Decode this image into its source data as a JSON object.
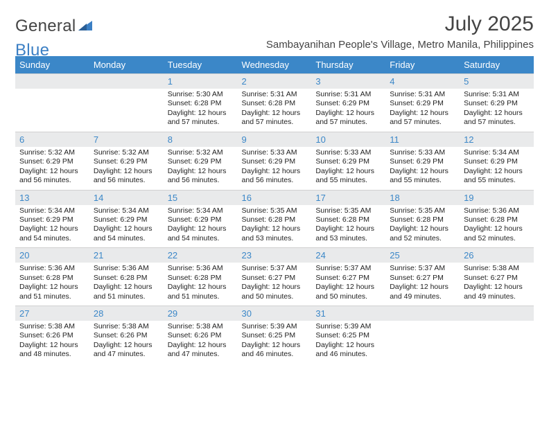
{
  "logo": {
    "word1": "General",
    "word2": "Blue"
  },
  "title": "July 2025",
  "location": "Sambayanihan People's Village, Metro Manila, Philippines",
  "colors": {
    "header_bg": "#3b87c8",
    "header_text": "#ffffff",
    "daynum_bg": "#e9eaeb",
    "daynum_text": "#3b87c8",
    "body_text": "#222222",
    "title_text": "#444444",
    "logo_gray": "#444444",
    "logo_blue": "#3b7fc4"
  },
  "day_headers": [
    "Sunday",
    "Monday",
    "Tuesday",
    "Wednesday",
    "Thursday",
    "Friday",
    "Saturday"
  ],
  "weeks": [
    [
      {
        "empty": true
      },
      {
        "empty": true
      },
      {
        "n": "1",
        "sr": "5:30 AM",
        "ss": "6:28 PM",
        "dl": "12 hours and 57 minutes."
      },
      {
        "n": "2",
        "sr": "5:31 AM",
        "ss": "6:28 PM",
        "dl": "12 hours and 57 minutes."
      },
      {
        "n": "3",
        "sr": "5:31 AM",
        "ss": "6:29 PM",
        "dl": "12 hours and 57 minutes."
      },
      {
        "n": "4",
        "sr": "5:31 AM",
        "ss": "6:29 PM",
        "dl": "12 hours and 57 minutes."
      },
      {
        "n": "5",
        "sr": "5:31 AM",
        "ss": "6:29 PM",
        "dl": "12 hours and 57 minutes."
      }
    ],
    [
      {
        "n": "6",
        "sr": "5:32 AM",
        "ss": "6:29 PM",
        "dl": "12 hours and 56 minutes."
      },
      {
        "n": "7",
        "sr": "5:32 AM",
        "ss": "6:29 PM",
        "dl": "12 hours and 56 minutes."
      },
      {
        "n": "8",
        "sr": "5:32 AM",
        "ss": "6:29 PM",
        "dl": "12 hours and 56 minutes."
      },
      {
        "n": "9",
        "sr": "5:33 AM",
        "ss": "6:29 PM",
        "dl": "12 hours and 56 minutes."
      },
      {
        "n": "10",
        "sr": "5:33 AM",
        "ss": "6:29 PM",
        "dl": "12 hours and 55 minutes."
      },
      {
        "n": "11",
        "sr": "5:33 AM",
        "ss": "6:29 PM",
        "dl": "12 hours and 55 minutes."
      },
      {
        "n": "12",
        "sr": "5:34 AM",
        "ss": "6:29 PM",
        "dl": "12 hours and 55 minutes."
      }
    ],
    [
      {
        "n": "13",
        "sr": "5:34 AM",
        "ss": "6:29 PM",
        "dl": "12 hours and 54 minutes."
      },
      {
        "n": "14",
        "sr": "5:34 AM",
        "ss": "6:29 PM",
        "dl": "12 hours and 54 minutes."
      },
      {
        "n": "15",
        "sr": "5:34 AM",
        "ss": "6:29 PM",
        "dl": "12 hours and 54 minutes."
      },
      {
        "n": "16",
        "sr": "5:35 AM",
        "ss": "6:28 PM",
        "dl": "12 hours and 53 minutes."
      },
      {
        "n": "17",
        "sr": "5:35 AM",
        "ss": "6:28 PM",
        "dl": "12 hours and 53 minutes."
      },
      {
        "n": "18",
        "sr": "5:35 AM",
        "ss": "6:28 PM",
        "dl": "12 hours and 52 minutes."
      },
      {
        "n": "19",
        "sr": "5:36 AM",
        "ss": "6:28 PM",
        "dl": "12 hours and 52 minutes."
      }
    ],
    [
      {
        "n": "20",
        "sr": "5:36 AM",
        "ss": "6:28 PM",
        "dl": "12 hours and 51 minutes."
      },
      {
        "n": "21",
        "sr": "5:36 AM",
        "ss": "6:28 PM",
        "dl": "12 hours and 51 minutes."
      },
      {
        "n": "22",
        "sr": "5:36 AM",
        "ss": "6:28 PM",
        "dl": "12 hours and 51 minutes."
      },
      {
        "n": "23",
        "sr": "5:37 AM",
        "ss": "6:27 PM",
        "dl": "12 hours and 50 minutes."
      },
      {
        "n": "24",
        "sr": "5:37 AM",
        "ss": "6:27 PM",
        "dl": "12 hours and 50 minutes."
      },
      {
        "n": "25",
        "sr": "5:37 AM",
        "ss": "6:27 PM",
        "dl": "12 hours and 49 minutes."
      },
      {
        "n": "26",
        "sr": "5:38 AM",
        "ss": "6:27 PM",
        "dl": "12 hours and 49 minutes."
      }
    ],
    [
      {
        "n": "27",
        "sr": "5:38 AM",
        "ss": "6:26 PM",
        "dl": "12 hours and 48 minutes."
      },
      {
        "n": "28",
        "sr": "5:38 AM",
        "ss": "6:26 PM",
        "dl": "12 hours and 47 minutes."
      },
      {
        "n": "29",
        "sr": "5:38 AM",
        "ss": "6:26 PM",
        "dl": "12 hours and 47 minutes."
      },
      {
        "n": "30",
        "sr": "5:39 AM",
        "ss": "6:25 PM",
        "dl": "12 hours and 46 minutes."
      },
      {
        "n": "31",
        "sr": "5:39 AM",
        "ss": "6:25 PM",
        "dl": "12 hours and 46 minutes."
      },
      {
        "empty": true
      },
      {
        "empty": true
      }
    ]
  ],
  "labels": {
    "sunrise": "Sunrise:",
    "sunset": "Sunset:",
    "daylight": "Daylight:"
  }
}
